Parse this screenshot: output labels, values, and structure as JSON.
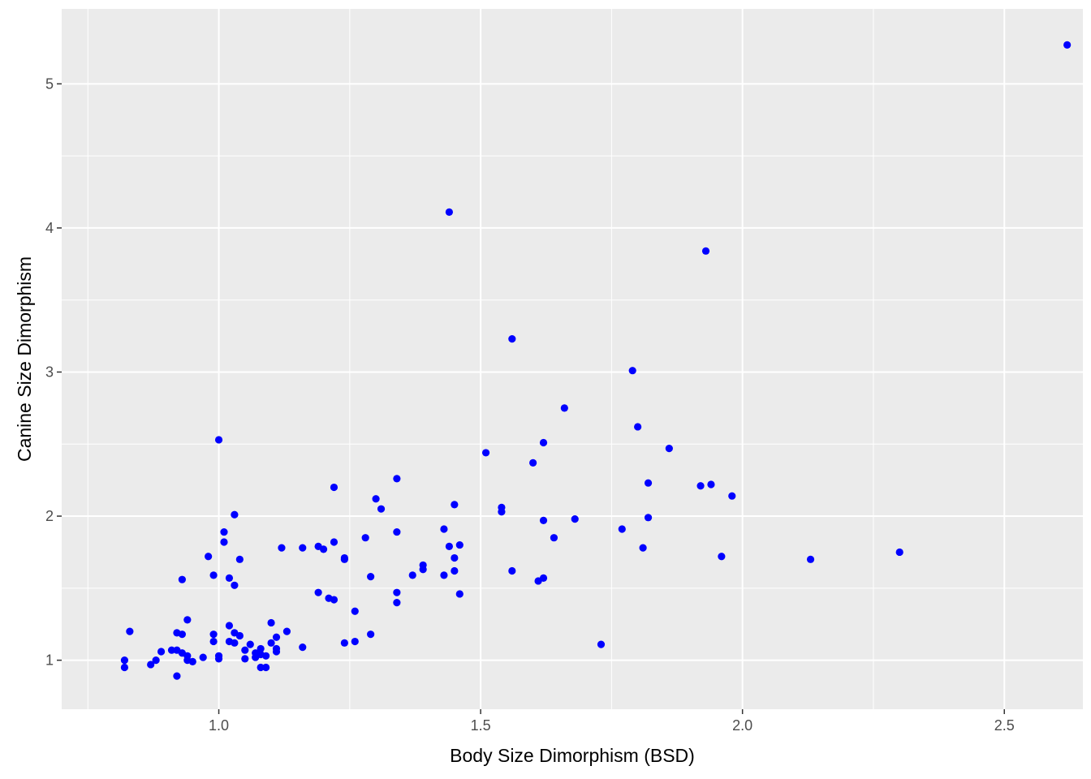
{
  "chart_data": {
    "type": "scatter",
    "xlabel": "Body Size Dimorphism (BSD)",
    "ylabel": "Canine Size Dimorphism",
    "xlim": [
      0.7,
      2.65
    ],
    "ylim": [
      0.66,
      5.52
    ],
    "x_ticks": [
      1.0,
      1.5,
      2.0,
      2.5
    ],
    "x_tick_labels": [
      "1.0",
      "1.5",
      "2.0",
      "2.5"
    ],
    "y_ticks": [
      1,
      2,
      3,
      4,
      5
    ],
    "y_tick_labels": [
      "1",
      "2",
      "3",
      "4",
      "5"
    ],
    "grid": true,
    "legend": "none",
    "colors": {
      "panel": "#ebebeb",
      "grid": "#ffffff",
      "point": "#0000ff",
      "tick": "#4d4d4d",
      "title": "#000000"
    },
    "points": [
      [
        0.82,
        1.0
      ],
      [
        0.82,
        0.95
      ],
      [
        0.83,
        1.2
      ],
      [
        0.87,
        0.97
      ],
      [
        0.88,
        1.0
      ],
      [
        0.89,
        1.06
      ],
      [
        0.91,
        1.07
      ],
      [
        0.92,
        1.07
      ],
      [
        0.92,
        1.19
      ],
      [
        0.92,
        0.89
      ],
      [
        0.93,
        1.05
      ],
      [
        0.93,
        1.18
      ],
      [
        0.93,
        1.56
      ],
      [
        0.94,
        1.0
      ],
      [
        0.94,
        1.03
      ],
      [
        0.94,
        1.28
      ],
      [
        0.95,
        0.99
      ],
      [
        0.97,
        1.02
      ],
      [
        0.98,
        1.72
      ],
      [
        0.99,
        1.59
      ],
      [
        0.99,
        1.13
      ],
      [
        0.99,
        1.18
      ],
      [
        1.0,
        1.01
      ],
      [
        1.0,
        1.03
      ],
      [
        1.0,
        2.53
      ],
      [
        1.01,
        1.89
      ],
      [
        1.01,
        1.82
      ],
      [
        1.02,
        1.57
      ],
      [
        1.02,
        1.13
      ],
      [
        1.03,
        1.12
      ],
      [
        1.02,
        1.24
      ],
      [
        1.03,
        1.19
      ],
      [
        1.03,
        2.01
      ],
      [
        1.03,
        1.52
      ],
      [
        1.04,
        1.7
      ],
      [
        1.04,
        1.17
      ],
      [
        1.05,
        1.07
      ],
      [
        1.05,
        1.01
      ],
      [
        1.06,
        1.11
      ],
      [
        1.07,
        1.02
      ],
      [
        1.07,
        1.05
      ],
      [
        1.08,
        1.08
      ],
      [
        1.08,
        1.04
      ],
      [
        1.09,
        1.03
      ],
      [
        1.08,
        0.95
      ],
      [
        1.09,
        0.95
      ],
      [
        1.1,
        1.26
      ],
      [
        1.1,
        1.12
      ],
      [
        1.11,
        1.06
      ],
      [
        1.11,
        1.16
      ],
      [
        1.11,
        1.08
      ],
      [
        1.12,
        1.78
      ],
      [
        1.13,
        1.2
      ],
      [
        1.16,
        1.78
      ],
      [
        1.16,
        1.09
      ],
      [
        1.19,
        1.47
      ],
      [
        1.19,
        1.79
      ],
      [
        1.2,
        1.77
      ],
      [
        1.21,
        1.43
      ],
      [
        1.22,
        1.42
      ],
      [
        1.22,
        2.2
      ],
      [
        1.22,
        1.82
      ],
      [
        1.24,
        1.7
      ],
      [
        1.24,
        1.71
      ],
      [
        1.24,
        1.12
      ],
      [
        1.26,
        1.13
      ],
      [
        1.26,
        1.34
      ],
      [
        1.28,
        1.85
      ],
      [
        1.29,
        1.58
      ],
      [
        1.29,
        1.18
      ],
      [
        1.3,
        2.12
      ],
      [
        1.31,
        2.05
      ],
      [
        1.34,
        2.26
      ],
      [
        1.34,
        1.89
      ],
      [
        1.34,
        1.47
      ],
      [
        1.34,
        1.4
      ],
      [
        1.37,
        1.59
      ],
      [
        1.39,
        1.63
      ],
      [
        1.39,
        1.66
      ],
      [
        1.43,
        1.59
      ],
      [
        1.43,
        1.91
      ],
      [
        1.44,
        1.79
      ],
      [
        1.44,
        4.11
      ],
      [
        1.45,
        2.08
      ],
      [
        1.45,
        1.71
      ],
      [
        1.45,
        1.62
      ],
      [
        1.46,
        1.8
      ],
      [
        1.46,
        1.46
      ],
      [
        1.51,
        2.44
      ],
      [
        1.54,
        2.06
      ],
      [
        1.54,
        2.03
      ],
      [
        1.56,
        1.62
      ],
      [
        1.56,
        3.23
      ],
      [
        1.6,
        2.37
      ],
      [
        1.61,
        1.55
      ],
      [
        1.62,
        1.97
      ],
      [
        1.62,
        2.51
      ],
      [
        1.62,
        1.57
      ],
      [
        1.64,
        1.85
      ],
      [
        1.66,
        2.75
      ],
      [
        1.68,
        1.98
      ],
      [
        1.73,
        1.11
      ],
      [
        1.77,
        1.91
      ],
      [
        1.79,
        3.01
      ],
      [
        1.8,
        2.62
      ],
      [
        1.81,
        1.78
      ],
      [
        1.82,
        2.23
      ],
      [
        1.82,
        1.99
      ],
      [
        1.86,
        2.47
      ],
      [
        1.92,
        2.21
      ],
      [
        1.93,
        3.84
      ],
      [
        1.94,
        2.22
      ],
      [
        1.96,
        1.72
      ],
      [
        1.98,
        2.14
      ],
      [
        2.13,
        1.7
      ],
      [
        2.3,
        1.75
      ],
      [
        2.62,
        5.27
      ]
    ]
  }
}
